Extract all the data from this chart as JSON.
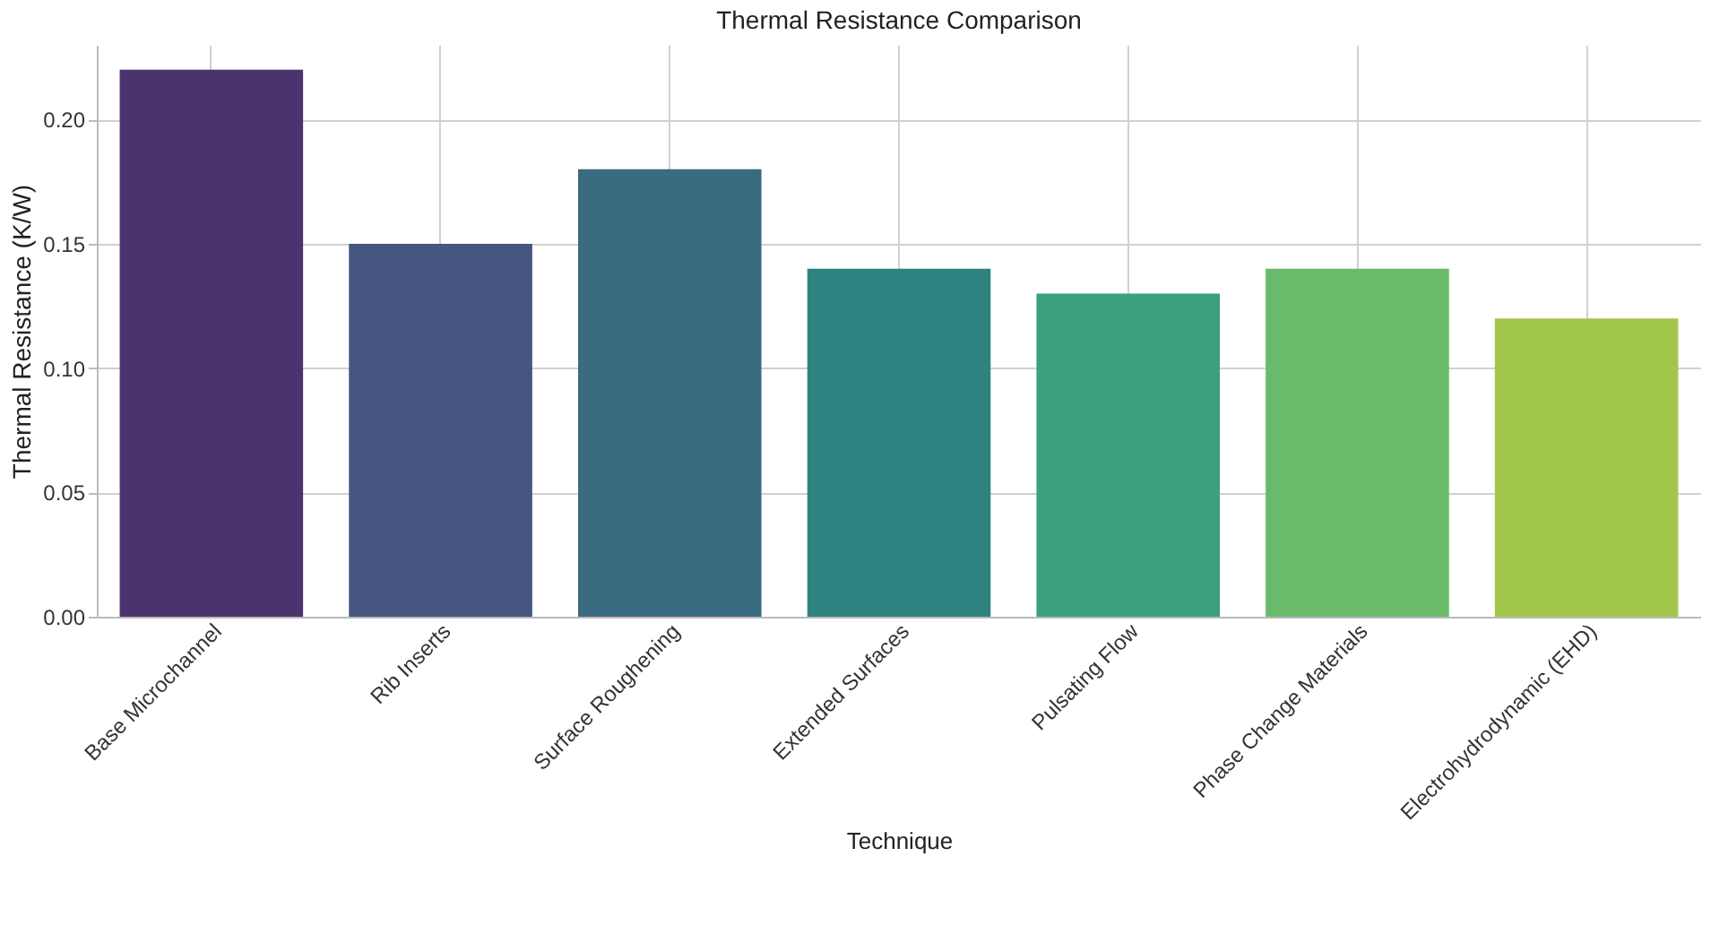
{
  "chart_data": {
    "type": "bar",
    "title": "Thermal Resistance Comparison",
    "xlabel": "Technique",
    "ylabel": "Thermal Resistance (K/W)",
    "categories": [
      "Base Microchannel",
      "Rib Inserts",
      "Surface Roughening",
      "Extended Surfaces",
      "Pulsating Flow",
      "Phase Change Materials",
      "Electrohydrodynamic (EHD)"
    ],
    "values": [
      0.22,
      0.15,
      0.18,
      0.14,
      0.13,
      0.14,
      0.12
    ],
    "colors": [
      "#4b346d",
      "#455680",
      "#3a6b80",
      "#2e8380",
      "#3aa07e",
      "#69bb6b",
      "#a2c64a"
    ],
    "ylim": [
      0,
      0.23
    ],
    "yticks": [
      {
        "value": 0,
        "label": "0.00"
      },
      {
        "value": 0.05,
        "label": "0.05"
      },
      {
        "value": 0.1,
        "label": "0.10"
      },
      {
        "value": 0.15,
        "label": "0.15"
      },
      {
        "value": 0.2,
        "label": "0.20"
      }
    ],
    "grid": true
  }
}
